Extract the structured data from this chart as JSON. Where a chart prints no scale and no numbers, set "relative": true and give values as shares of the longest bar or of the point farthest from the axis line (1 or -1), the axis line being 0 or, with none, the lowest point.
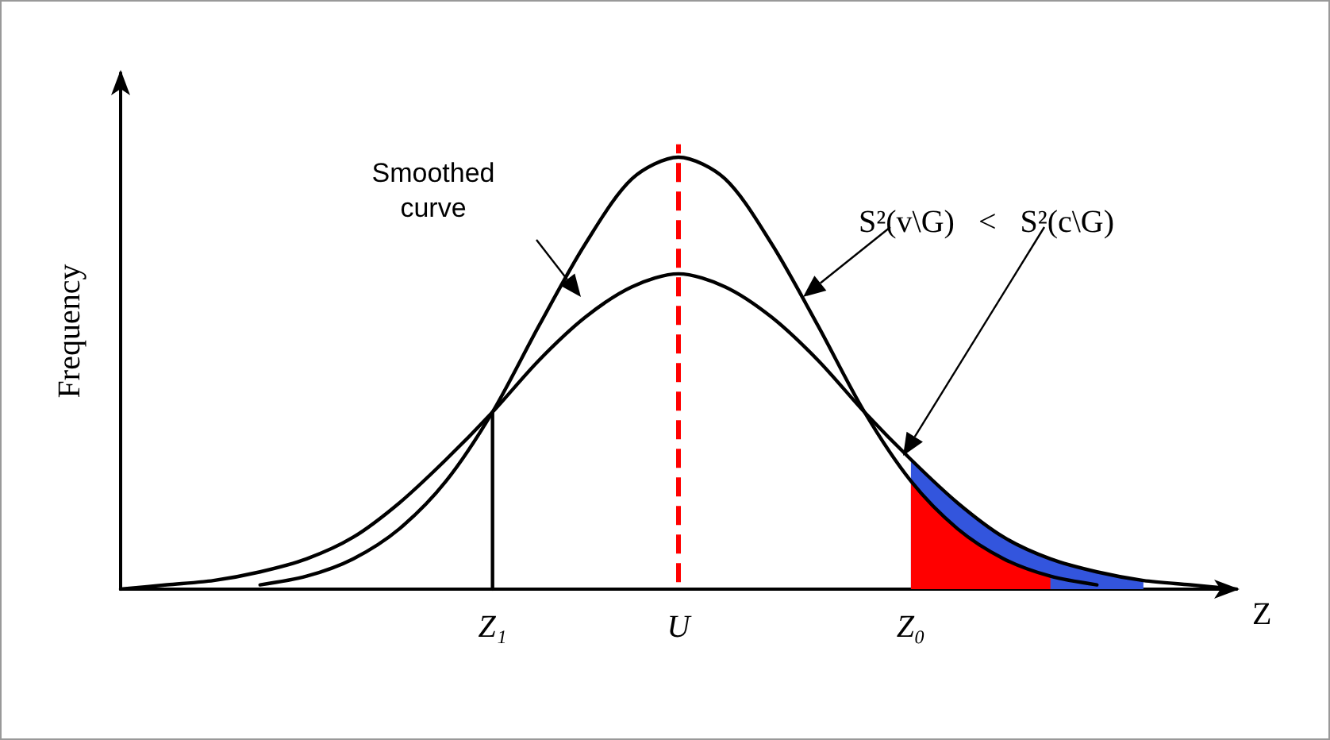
{
  "chart_data": {
    "type": "line",
    "relative": true,
    "ylabel": "Frequency",
    "xlabel": "Z",
    "categories": [
      null,
      null,
      null,
      null,
      null,
      null,
      null,
      null,
      "Z₁",
      null,
      null,
      null,
      "U",
      null,
      null,
      null,
      null,
      "Z₀",
      null,
      null,
      null,
      null,
      null,
      null,
      null
    ],
    "grid": false,
    "marker": "none",
    "line_style": "solid",
    "annotations": [
      "Smoothed\ncurve",
      "S²(v\\G)   <   S²(c\\G)"
    ],
    "ref_lines": [
      {
        "axis": "x",
        "value": "U",
        "color": "#ff0000",
        "line_style": "dashed"
      }
    ],
    "series": [
      {
        "type": "area",
        "color": "#3355dd",
        "values": [
          null,
          null,
          null,
          null,
          null,
          null,
          null,
          null,
          null,
          null,
          null,
          null,
          null,
          null,
          null,
          null,
          null,
          0.3,
          0.2,
          0.12,
          0.07,
          0.04,
          0.02,
          null,
          null
        ]
      },
      {
        "type": "area",
        "color": "#ff0000",
        "values": [
          null,
          null,
          null,
          null,
          null,
          null,
          null,
          null,
          null,
          null,
          null,
          null,
          null,
          null,
          null,
          null,
          null,
          0.25,
          0.14,
          0.07,
          0.03,
          null,
          null,
          null,
          null
        ]
      },
      {
        "color": "#000000",
        "values": [
          null,
          null,
          null,
          0.01,
          0.03,
          0.07,
          0.14,
          0.25,
          0.41,
          0.61,
          0.8,
          0.95,
          1,
          0.95,
          0.8,
          0.61,
          0.41,
          0.25,
          0.14,
          0.07,
          0.03,
          0.01,
          null,
          null,
          null
        ]
      },
      {
        "color": "#000000",
        "values": [
          0,
          0.01,
          0.02,
          0.04,
          0.07,
          0.12,
          0.2,
          0.3,
          0.41,
          0.53,
          0.63,
          0.7,
          0.73,
          0.7,
          0.63,
          0.53,
          0.41,
          0.3,
          0.2,
          0.12,
          0.07,
          0.04,
          0.02,
          0.01,
          0
        ]
      },
      {
        "color": "#000000",
        "x": [
          "Z₁",
          "Z₁"
        ],
        "values": [
          0,
          0.41
        ]
      }
    ]
  }
}
